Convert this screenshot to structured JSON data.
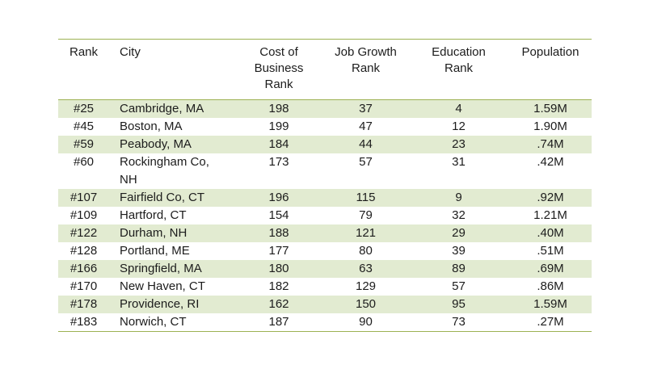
{
  "colors": {
    "background": "#ffffff",
    "stripe": "#e2ebd1",
    "rule": "#9db253",
    "text": "#1c1c1c"
  },
  "table": {
    "columns": [
      {
        "label": "Rank",
        "field": "rank"
      },
      {
        "label": "City",
        "field": "city"
      },
      {
        "label": "Cost of Business Rank",
        "field": "cost_of_business_rank"
      },
      {
        "label": "Job Growth Rank",
        "field": "job_growth_rank"
      },
      {
        "label": "Education Rank",
        "field": "education_rank"
      },
      {
        "label": "Population",
        "field": "population"
      }
    ],
    "rows": [
      {
        "rank": "#25",
        "city": "Cambridge, MA",
        "cost_of_business_rank": "198",
        "job_growth_rank": "37",
        "education_rank": "4",
        "population": "1.59M"
      },
      {
        "rank": "#45",
        "city": "Boston, MA",
        "cost_of_business_rank": "199",
        "job_growth_rank": "47",
        "education_rank": "12",
        "population": "1.90M"
      },
      {
        "rank": "#59",
        "city": "Peabody, MA",
        "cost_of_business_rank": "184",
        "job_growth_rank": "44",
        "education_rank": "23",
        "population": ".74M"
      },
      {
        "rank": "#60",
        "city": "Rockingham Co, NH",
        "cost_of_business_rank": "173",
        "job_growth_rank": "57",
        "education_rank": "31",
        "population": ".42M"
      },
      {
        "rank": "#107",
        "city": "Fairfield Co, CT",
        "cost_of_business_rank": "196",
        "job_growth_rank": "115",
        "education_rank": "9",
        "population": ".92M"
      },
      {
        "rank": "#109",
        "city": "Hartford, CT",
        "cost_of_business_rank": "154",
        "job_growth_rank": "79",
        "education_rank": "32",
        "population": "1.21M"
      },
      {
        "rank": "#122",
        "city": "Durham, NH",
        "cost_of_business_rank": "188",
        "job_growth_rank": "121",
        "education_rank": "29",
        "population": ".40M"
      },
      {
        "rank": "#128",
        "city": "Portland, ME",
        "cost_of_business_rank": "177",
        "job_growth_rank": "80",
        "education_rank": "39",
        "population": ".51M"
      },
      {
        "rank": "#166",
        "city": "Springfield, MA",
        "cost_of_business_rank": "180",
        "job_growth_rank": "63",
        "education_rank": "89",
        "population": ".69M"
      },
      {
        "rank": "#170",
        "city": "New Haven, CT",
        "cost_of_business_rank": "182",
        "job_growth_rank": "129",
        "education_rank": "57",
        "population": ".86M"
      },
      {
        "rank": "#178",
        "city": "Providence, RI",
        "cost_of_business_rank": "162",
        "job_growth_rank": "150",
        "education_rank": "95",
        "population": "1.59M"
      },
      {
        "rank": "#183",
        "city": "Norwich, CT",
        "cost_of_business_rank": "187",
        "job_growth_rank": "90",
        "education_rank": "73",
        "population": ".27M"
      }
    ]
  },
  "chart_data": {
    "type": "table",
    "title": "",
    "columns": [
      "Rank",
      "City",
      "Cost of Business Rank",
      "Job Growth Rank",
      "Education Rank",
      "Population"
    ],
    "rows": [
      [
        "#25",
        "Cambridge, MA",
        198,
        37,
        4,
        "1.59M"
      ],
      [
        "#45",
        "Boston, MA",
        199,
        47,
        12,
        "1.90M"
      ],
      [
        "#59",
        "Peabody, MA",
        184,
        44,
        23,
        ".74M"
      ],
      [
        "#60",
        "Rockingham Co, NH",
        173,
        57,
        31,
        ".42M"
      ],
      [
        "#107",
        "Fairfield Co, CT",
        196,
        115,
        9,
        ".92M"
      ],
      [
        "#109",
        "Hartford, CT",
        154,
        79,
        32,
        "1.21M"
      ],
      [
        "#122",
        "Durham, NH",
        188,
        121,
        29,
        ".40M"
      ],
      [
        "#128",
        "Portland, ME",
        177,
        80,
        39,
        ".51M"
      ],
      [
        "#166",
        "Springfield, MA",
        180,
        63,
        89,
        ".69M"
      ],
      [
        "#170",
        "New Haven, CT",
        182,
        129,
        57,
        ".86M"
      ],
      [
        "#178",
        "Providence, RI",
        162,
        150,
        95,
        "1.59M"
      ],
      [
        "#183",
        "Norwich, CT",
        187,
        90,
        73,
        ".27M"
      ]
    ],
    "layout": {
      "zebra_stripes": true,
      "stripe_color": "#e2ebd1",
      "rule_color": "#9db253",
      "grid": "horizontal-rules-only"
    }
  }
}
